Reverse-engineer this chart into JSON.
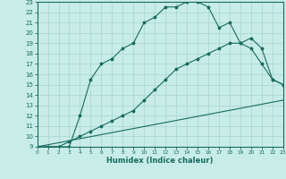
{
  "xlabel": "Humidex (Indice chaleur)",
  "bg_color": "#c8ece8",
  "grid_color": "#a8d4d0",
  "line_color": "#1a6b60",
  "xlim": [
    0,
    23
  ],
  "ylim": [
    9,
    23
  ],
  "xticks": [
    0,
    1,
    2,
    3,
    4,
    5,
    6,
    7,
    8,
    9,
    10,
    11,
    12,
    13,
    14,
    15,
    16,
    17,
    18,
    19,
    20,
    21,
    22,
    23
  ],
  "yticks": [
    9,
    10,
    11,
    12,
    13,
    14,
    15,
    16,
    17,
    18,
    19,
    20,
    21,
    22,
    23
  ],
  "curve1_x": [
    0,
    1,
    2,
    3,
    4,
    5,
    6,
    7,
    8,
    9,
    10,
    11,
    12,
    13,
    14,
    15,
    16,
    17,
    18,
    19,
    20,
    21,
    22,
    23
  ],
  "curve1_y": [
    9,
    9,
    9,
    9,
    12,
    15.5,
    17,
    17.5,
    18.5,
    19,
    21,
    21.5,
    22.5,
    22.5,
    23,
    23,
    22.5,
    20.5,
    21,
    19,
    19.5,
    18.5,
    15.5,
    15
  ],
  "curve2_x": [
    0,
    2,
    3,
    4,
    5,
    6,
    7,
    8,
    9,
    10,
    11,
    12,
    13,
    14,
    15,
    16,
    17,
    18,
    19,
    20,
    21,
    22,
    23
  ],
  "curve2_y": [
    9,
    9,
    9.5,
    10,
    10.5,
    11,
    11.5,
    12,
    12.5,
    13.5,
    14.5,
    15.5,
    16.5,
    17,
    17.5,
    18,
    18.5,
    19,
    19,
    18.5,
    17,
    15.5,
    15
  ],
  "curve3_x": [
    0,
    23
  ],
  "curve3_y": [
    9,
    13.5
  ]
}
